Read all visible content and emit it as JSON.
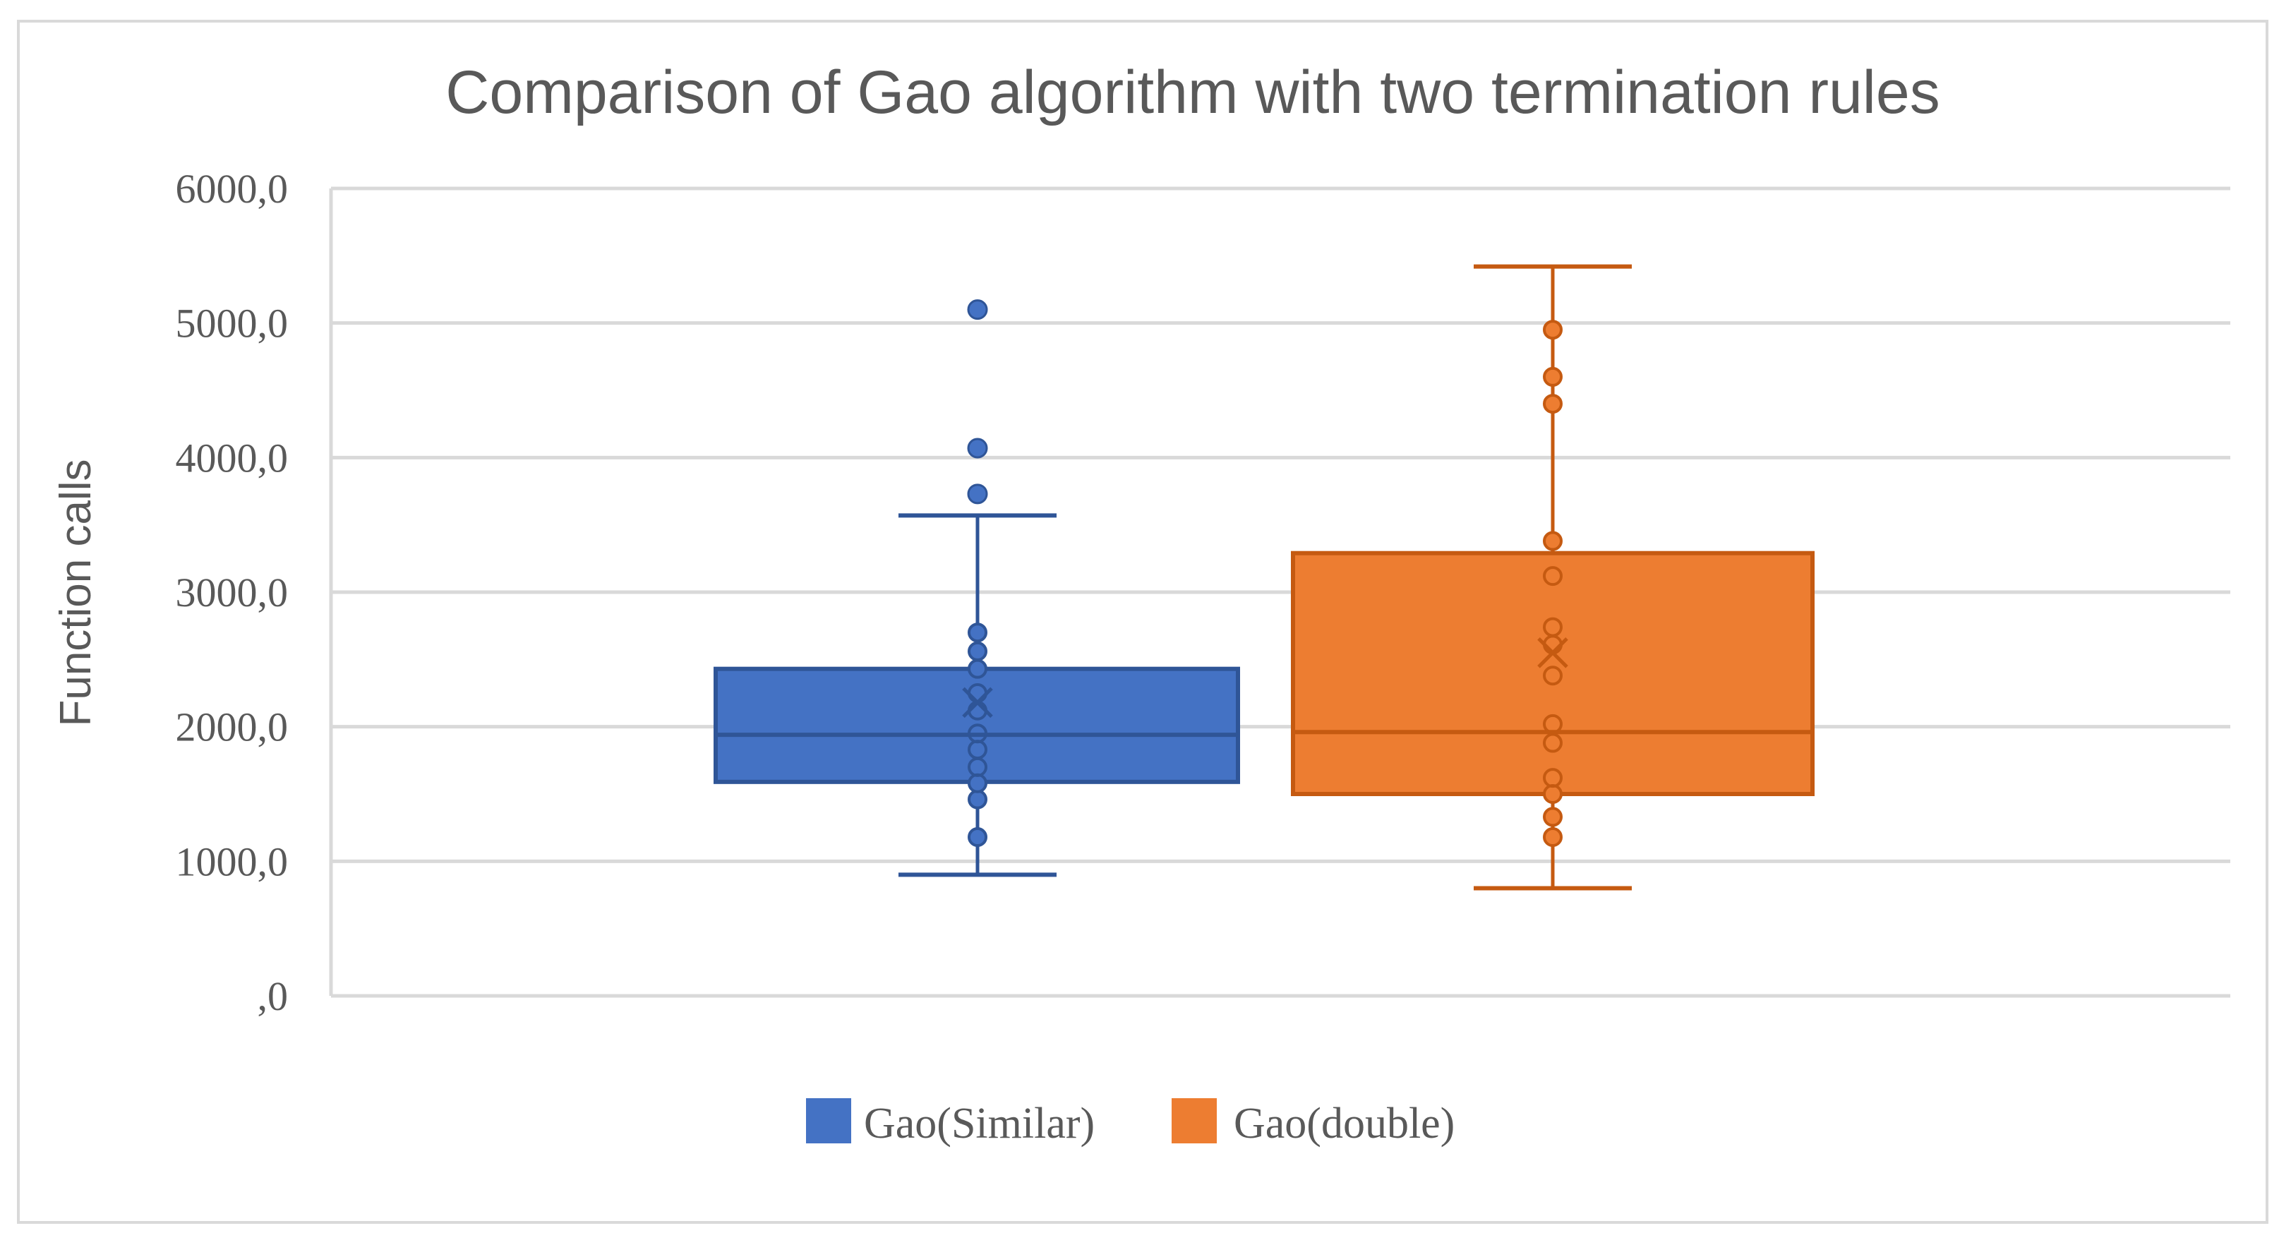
{
  "chart_data": {
    "type": "box",
    "title": "Comparison of Gao algorithm with two termination rules",
    "xlabel": "",
    "ylabel": "Function calls",
    "ylim": [
      0,
      6000
    ],
    "yticks": [
      0,
      1000,
      2000,
      3000,
      4000,
      5000,
      6000
    ],
    "ytick_labels": [
      ",0",
      "1000,0",
      "2000,0",
      "3000,0",
      "4000,0",
      "5000,0",
      "6000,0"
    ],
    "grid": true,
    "legend_position": "bottom",
    "series": [
      {
        "name": "Gao(Similar)",
        "color": "#4472C4",
        "edge_color": "#2F5597",
        "whisker_low": 900,
        "q1": 1590,
        "median": 1940,
        "q3": 2430,
        "whisker_high": 3570,
        "mean": 2180,
        "outliers": [
          3730,
          4070,
          5100
        ],
        "points": [
          1180,
          1460,
          1580,
          1700,
          1830,
          1950,
          2120,
          2250,
          2430,
          2560,
          2700
        ]
      },
      {
        "name": "Gao(double)",
        "color": "#ED7D31",
        "edge_color": "#C55A11",
        "whisker_low": 800,
        "q1": 1500,
        "median": 1960,
        "q3": 3290,
        "whisker_high": 5420,
        "mean": 2550,
        "outliers": [],
        "points": [
          1180,
          1330,
          1500,
          1620,
          1880,
          2020,
          2380,
          2610,
          2740,
          3120,
          3380,
          4400,
          4600,
          4950
        ]
      }
    ]
  }
}
